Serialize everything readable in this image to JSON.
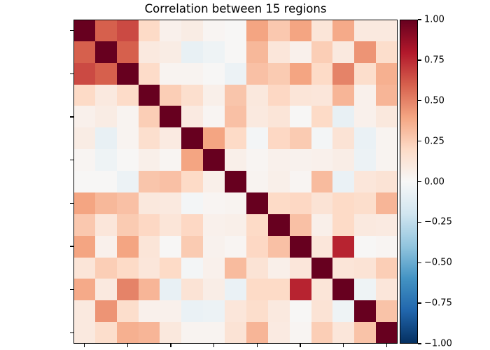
{
  "figure": {
    "background": "#ffffff"
  },
  "chart_data": {
    "type": "heatmap",
    "title": "Correlation between 15 regions",
    "n_rows": 15,
    "n_cols": 15,
    "vmin": -1.0,
    "vmax": 1.0,
    "grid": false,
    "axis_tick_labels_visible": false,
    "x_tick_indices": [
      0,
      2,
      4,
      6,
      8,
      10,
      12,
      14
    ],
    "y_tick_indices": [
      0,
      2,
      4,
      6,
      8,
      10,
      12,
      14
    ],
    "matrix": [
      [
        1.0,
        0.6,
        0.66,
        0.2,
        0.05,
        0.08,
        0.02,
        0.01,
        0.4,
        0.27,
        0.4,
        0.13,
        0.38,
        0.1,
        0.1
      ],
      [
        0.6,
        1.0,
        0.6,
        0.1,
        0.08,
        -0.08,
        -0.05,
        0.01,
        0.33,
        0.12,
        0.05,
        0.25,
        0.1,
        0.45,
        0.18
      ],
      [
        0.66,
        0.6,
        1.0,
        0.19,
        0.03,
        0.03,
        0.01,
        -0.06,
        0.3,
        0.26,
        0.4,
        0.2,
        0.5,
        0.18,
        0.36
      ],
      [
        0.2,
        0.1,
        0.19,
        1.0,
        0.25,
        0.17,
        0.06,
        0.28,
        0.11,
        0.21,
        0.13,
        0.12,
        0.34,
        0.05,
        0.34
      ],
      [
        0.05,
        0.08,
        0.03,
        0.25,
        1.0,
        0.09,
        0.02,
        0.3,
        0.1,
        0.13,
        0.01,
        0.2,
        -0.08,
        0.05,
        0.11
      ],
      [
        0.08,
        -0.08,
        0.03,
        0.17,
        0.09,
        1.0,
        0.4,
        0.2,
        -0.02,
        0.21,
        0.26,
        -0.02,
        0.14,
        -0.07,
        0.03
      ],
      [
        0.02,
        -0.05,
        0.01,
        0.06,
        0.02,
        0.4,
        1.0,
        0.06,
        0.02,
        0.05,
        0.04,
        0.05,
        0.07,
        -0.06,
        0.03
      ],
      [
        0.01,
        0.01,
        -0.06,
        0.28,
        0.3,
        0.2,
        0.06,
        1.0,
        0.03,
        0.06,
        0.02,
        0.32,
        -0.07,
        0.12,
        0.14
      ],
      [
        0.4,
        0.33,
        0.3,
        0.11,
        0.1,
        -0.02,
        0.02,
        0.03,
        1.0,
        0.2,
        0.21,
        0.14,
        0.2,
        0.18,
        0.34
      ],
      [
        0.27,
        0.12,
        0.26,
        0.21,
        0.13,
        0.21,
        0.05,
        0.06,
        0.2,
        1.0,
        0.3,
        0.06,
        0.2,
        0.1,
        0.09
      ],
      [
        0.4,
        0.05,
        0.4,
        0.13,
        0.01,
        0.26,
        0.04,
        0.02,
        0.21,
        0.3,
        1.0,
        0.12,
        0.77,
        0.01,
        0.02
      ],
      [
        0.13,
        0.25,
        0.2,
        0.12,
        0.2,
        -0.02,
        0.05,
        0.32,
        0.14,
        0.06,
        0.12,
        1.0,
        0.13,
        0.14,
        0.25
      ],
      [
        0.38,
        0.1,
        0.5,
        0.34,
        -0.08,
        0.14,
        0.07,
        -0.07,
        0.2,
        0.2,
        0.77,
        0.13,
        1.0,
        -0.05,
        0.12
      ],
      [
        0.1,
        0.45,
        0.18,
        0.05,
        0.05,
        -0.07,
        -0.06,
        0.12,
        0.18,
        0.1,
        0.01,
        0.14,
        -0.05,
        1.0,
        0.29
      ],
      [
        0.1,
        0.18,
        0.36,
        0.34,
        0.11,
        0.03,
        0.03,
        0.14,
        0.34,
        0.09,
        0.02,
        0.25,
        0.12,
        0.29,
        1.0
      ]
    ],
    "colormap": {
      "name": "RdBu_r",
      "anchors": [
        "#053061",
        "#2166ac",
        "#4393c3",
        "#92c5de",
        "#d1e5f0",
        "#f7f7f7",
        "#fddbc7",
        "#f4a582",
        "#d6604d",
        "#b2182b",
        "#67001f"
      ]
    },
    "colorbar": {
      "position": "right",
      "tick_values": [
        1.0,
        0.75,
        0.5,
        0.25,
        0.0,
        -0.25,
        -0.5,
        -0.75,
        -1.0
      ],
      "tick_labels": [
        "1.00",
        "0.75",
        "0.50",
        "0.25",
        "0.00",
        "−0.25",
        "−0.50",
        "−0.75",
        "−1.00"
      ]
    }
  }
}
